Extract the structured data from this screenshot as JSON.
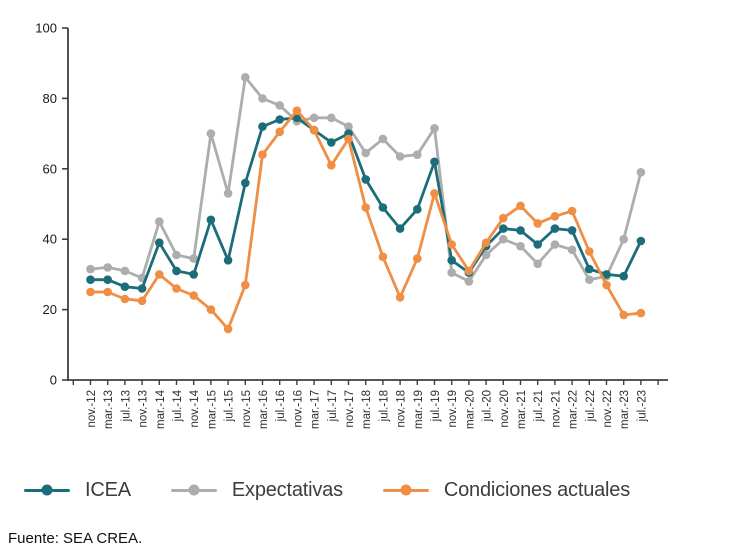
{
  "chart_data": {
    "type": "line",
    "title": "",
    "xlabel": "",
    "ylabel": "",
    "ylim": [
      0,
      100
    ],
    "yticks": [
      0,
      20,
      40,
      60,
      80,
      100
    ],
    "grid": false,
    "legend_position": "bottom",
    "categories": [
      "nov.-12",
      "mar.-13",
      "jul.-13",
      "nov.-13",
      "mar.-14",
      "jul.-14",
      "nov.-14",
      "mar.-15",
      "jul.-15",
      "nov.-15",
      "mar.-16",
      "jul.-16",
      "nov.-16",
      "mar.-17",
      "jul.-17",
      "nov.-17",
      "mar.-18",
      "jul.-18",
      "nov.-18",
      "mar.-19",
      "jul.-19",
      "nov.-19",
      "mar.-20",
      "jul.-20",
      "nov.-20",
      "mar.-21",
      "jul.-21",
      "nov.-21",
      "mar.-22",
      "jul.-22",
      "nov.-22",
      "mar.-23",
      "jul.-23"
    ],
    "series": [
      {
        "name": "ICEA",
        "color": "#1b6e79",
        "values": [
          28.5,
          28.5,
          26.5,
          26,
          39,
          31,
          30,
          45.5,
          34,
          56,
          72,
          74,
          74.5,
          71,
          67.5,
          70,
          57,
          49,
          43,
          48.5,
          62,
          34,
          30.5,
          38,
          43,
          42.5,
          38.5,
          43,
          42.5,
          31.5,
          30,
          29.5,
          39.5
        ]
      },
      {
        "name": "Expectativas",
        "color": "#adadad",
        "values": [
          31.5,
          32,
          31,
          29,
          45,
          35.5,
          34.5,
          70,
          53,
          86,
          80,
          78,
          73.5,
          74.5,
          74.5,
          72,
          64.5,
          68.5,
          63.5,
          64,
          71.5,
          30.5,
          28,
          35.5,
          40,
          38,
          33,
          38.5,
          37,
          28.5,
          29.5,
          40,
          59
        ]
      },
      {
        "name": "Condiciones actuales",
        "color": "#ef8e44",
        "values": [
          25,
          25,
          23,
          22.5,
          30,
          26,
          24,
          20,
          14.5,
          27,
          64,
          70.5,
          76.5,
          71,
          61,
          68.5,
          49,
          35,
          23.5,
          34.5,
          53,
          38.5,
          31,
          39,
          46,
          49.5,
          44.5,
          46.5,
          48,
          36.5,
          27,
          18.5,
          19
        ]
      }
    ],
    "axis_color": "#3f3f3f",
    "tick_label_color": "#1a1a1a"
  },
  "source_note": "Fuente: SEA CREA."
}
